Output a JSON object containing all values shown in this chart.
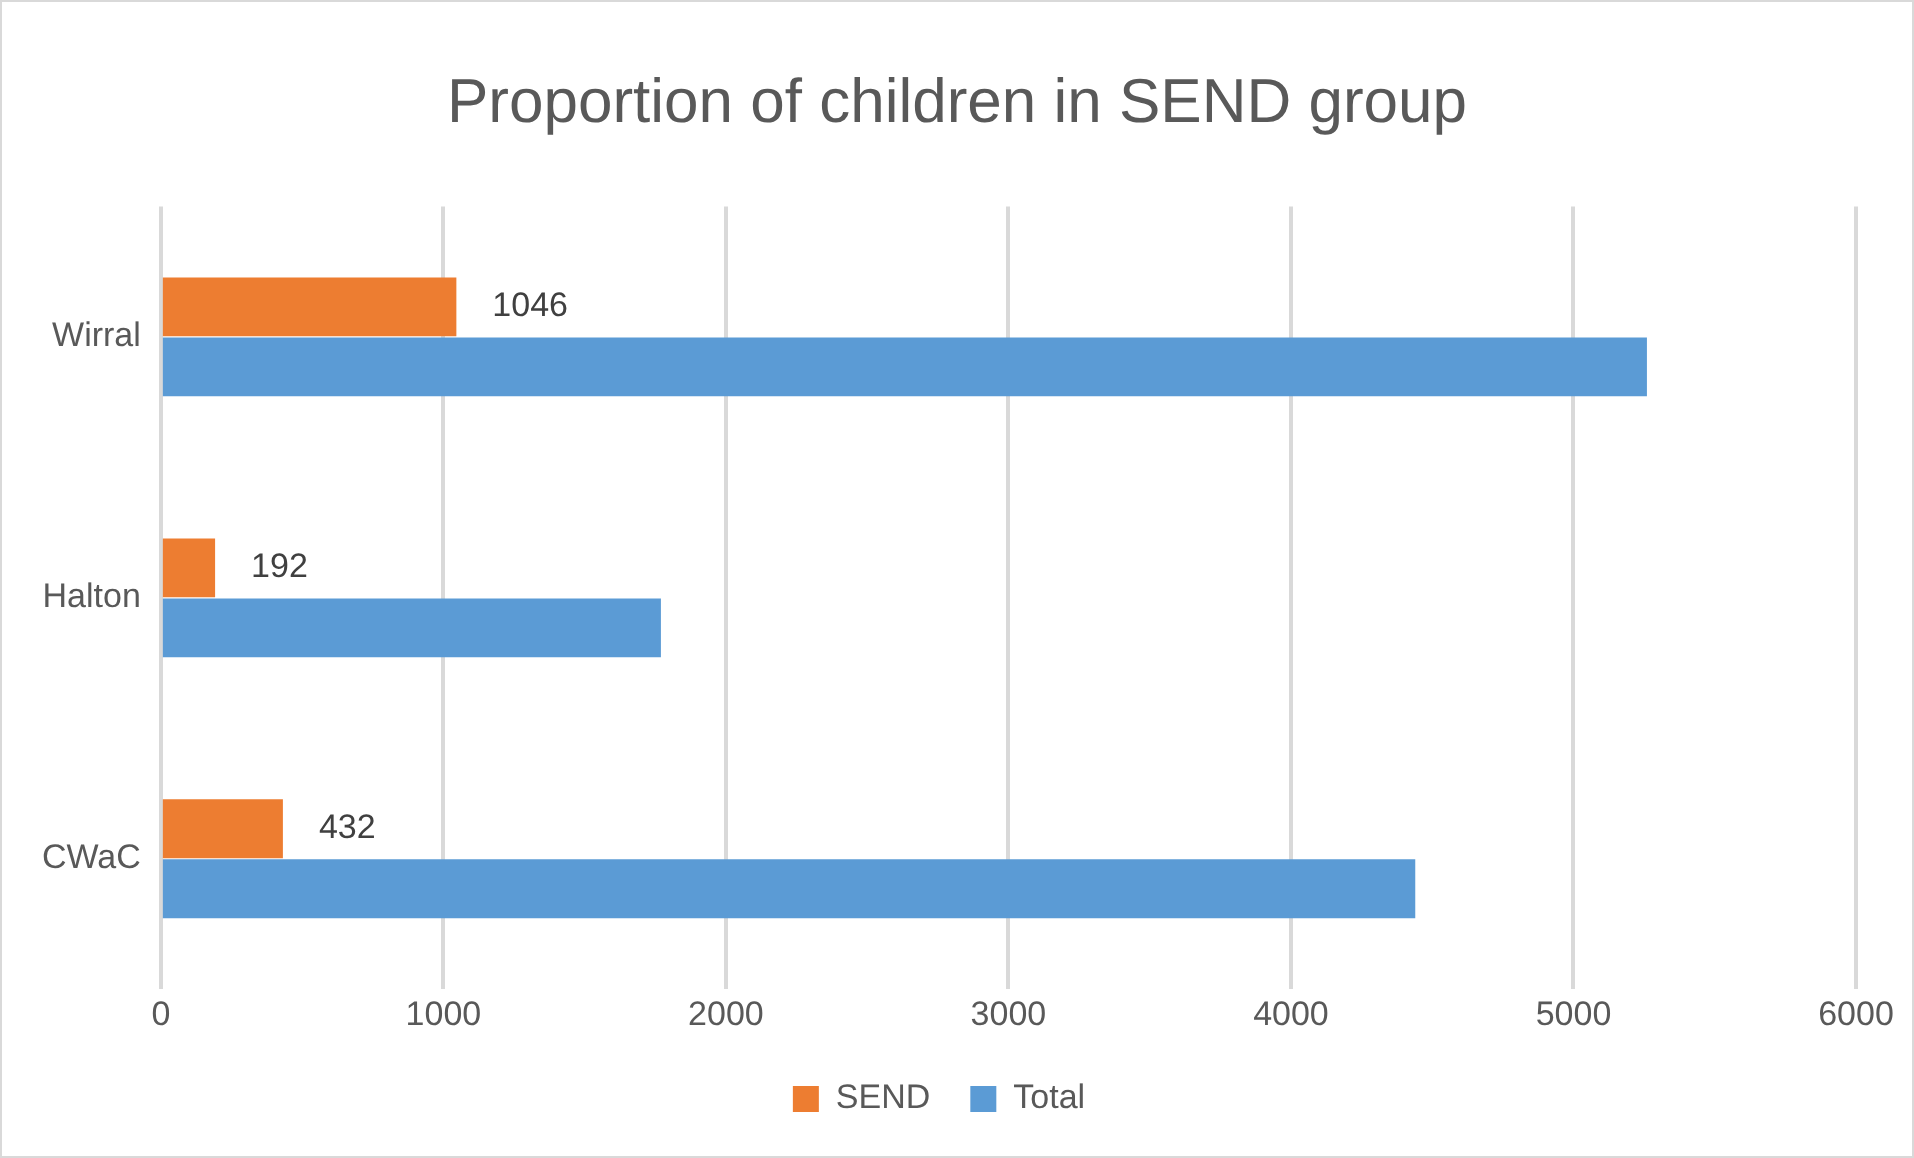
{
  "chart_data": {
    "type": "bar",
    "orientation": "horizontal",
    "title": "Proportion of children in SEND group",
    "categories": [
      "Wirral",
      "Halton",
      "CWaC"
    ],
    "series": [
      {
        "name": "SEND",
        "color": "#ed7d31",
        "values": [
          1046,
          192,
          432
        ],
        "value_labels": [
          "1046",
          "192",
          "432"
        ]
      },
      {
        "name": "Total",
        "color": "#5b9bd5",
        "values": [
          5260,
          1770,
          4440
        ]
      }
    ],
    "xlim": [
      0,
      6000
    ],
    "xticks": [
      0,
      1000,
      2000,
      3000,
      4000,
      5000,
      6000
    ],
    "grid": "x",
    "legend": "bottom"
  }
}
